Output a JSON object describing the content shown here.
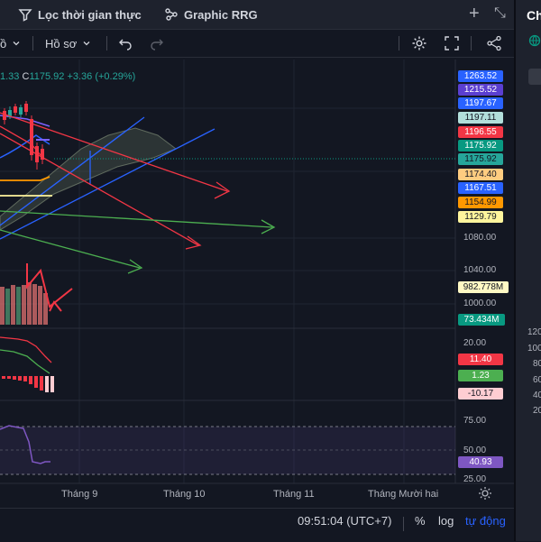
{
  "tabs": {
    "screener": "Lọc thời gian thực",
    "rrg": "Graphic RRG",
    "add": "+",
    "expand": "⤡"
  },
  "toolbar": {
    "left_fragment": "ồ",
    "profile": "Hồ sơ"
  },
  "ohlc": {
    "low_fragment": "1.33",
    "close_label": "C",
    "close_value": "1175.92",
    "change": "+3.36 (+0.29%)"
  },
  "price_labels": [
    {
      "text": "1263.52",
      "bg": "#2962ff",
      "fg": "#ffffff"
    },
    {
      "text": "1215.52",
      "bg": "#5b3fd1",
      "fg": "#ffffff"
    },
    {
      "text": "1197.67",
      "bg": "#2962ff",
      "fg": "#ffffff"
    },
    {
      "text": "1197.11",
      "bg": "#b2dfdb",
      "fg": "#131722"
    },
    {
      "text": "1196.55",
      "bg": "#f23645",
      "fg": "#ffffff"
    },
    {
      "text": "1175.92",
      "bg": "#089981",
      "fg": "#ffffff"
    },
    {
      "text": "1175.92",
      "bg": "#26a69a",
      "fg": "#131722"
    },
    {
      "text": "1174.40",
      "bg": "#ffcc80",
      "fg": "#131722"
    },
    {
      "text": "1167.51",
      "bg": "#2962ff",
      "fg": "#ffffff"
    },
    {
      "text": "1154.99",
      "bg": "#ff9800",
      "fg": "#131722"
    },
    {
      "text": "1129.79",
      "bg": "#fff59d",
      "fg": "#131722"
    }
  ],
  "price_axis": [
    "1080.00",
    "1040.00",
    "1000.00"
  ],
  "volume_labels": [
    {
      "text": "982.778M",
      "bg": "#fff9c4",
      "fg": "#131722"
    },
    {
      "text": "73.434M",
      "bg": "#089981",
      "fg": "#ffffff"
    }
  ],
  "indicator1": {
    "axis": "20.00",
    "labels": [
      {
        "text": "11.40",
        "bg": "#f23645",
        "fg": "#ffffff"
      },
      {
        "text": "1.23",
        "bg": "#4caf50",
        "fg": "#ffffff"
      },
      {
        "text": "-10.17",
        "bg": "#ffcdd2",
        "fg": "#131722"
      }
    ]
  },
  "rsi": {
    "axis": [
      "75.00",
      "50.00",
      "25.00"
    ],
    "value": {
      "text": "40.93",
      "bg": "#7e57c2",
      "fg": "#ffffff"
    }
  },
  "time_axis": [
    "Tháng 9",
    "Tháng 10",
    "Tháng 11",
    "Tháng Mười hai"
  ],
  "status": {
    "time": "09:51:04 (UTC+7)",
    "percent": "%",
    "log": "log",
    "auto": "tự động"
  },
  "right_panel": {
    "title": "Ch",
    "numbers": [
      "120",
      "100",
      "80",
      "60",
      "40",
      "20"
    ]
  }
}
